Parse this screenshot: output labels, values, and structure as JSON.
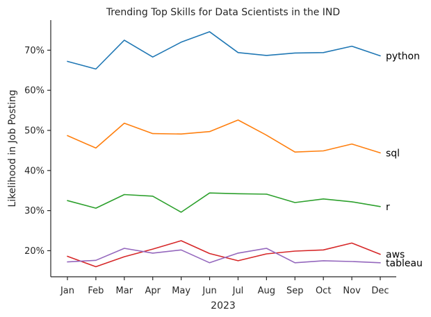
{
  "chart_data": {
    "type": "line",
    "title": "Trending Top Skills for Data Scientists in the IND",
    "xlabel": "2023",
    "ylabel": "Likelihood in Job Posting",
    "categories": [
      "Jan",
      "Feb",
      "Mar",
      "Apr",
      "May",
      "Jun",
      "Jul",
      "Aug",
      "Sep",
      "Oct",
      "Nov",
      "Dec"
    ],
    "yticks": [
      20,
      30,
      40,
      50,
      60,
      70
    ],
    "ytick_labels": [
      "20%",
      "30%",
      "40%",
      "50%",
      "60%",
      "70%"
    ],
    "ylim": [
      13.5,
      77.5
    ],
    "grid": false,
    "legend": "labels at line ends (right)",
    "series": [
      {
        "name": "python",
        "color": "#1f77b4",
        "values": [
          67.2,
          65.3,
          72.5,
          68.3,
          72.0,
          74.6,
          69.4,
          68.7,
          69.3,
          69.4,
          71.0,
          68.6
        ]
      },
      {
        "name": "sql",
        "color": "#ff7f0e",
        "values": [
          48.7,
          45.6,
          51.8,
          49.2,
          49.1,
          49.7,
          52.6,
          48.8,
          44.6,
          44.9,
          46.6,
          44.4
        ]
      },
      {
        "name": "r",
        "color": "#2ca02c",
        "values": [
          32.5,
          30.6,
          34.0,
          33.6,
          29.6,
          34.4,
          34.2,
          34.1,
          32.0,
          32.9,
          32.2,
          31.0
        ]
      },
      {
        "name": "aws",
        "color": "#d62728",
        "values": [
          18.6,
          16.0,
          18.5,
          20.4,
          22.5,
          19.3,
          17.5,
          19.2,
          19.9,
          20.2,
          21.9,
          19.1
        ]
      },
      {
        "name": "tableau",
        "color": "#9467bd",
        "values": [
          17.2,
          17.6,
          20.6,
          19.4,
          20.2,
          17.0,
          19.4,
          20.6,
          17.0,
          17.5,
          17.3,
          17.0
        ]
      }
    ]
  }
}
